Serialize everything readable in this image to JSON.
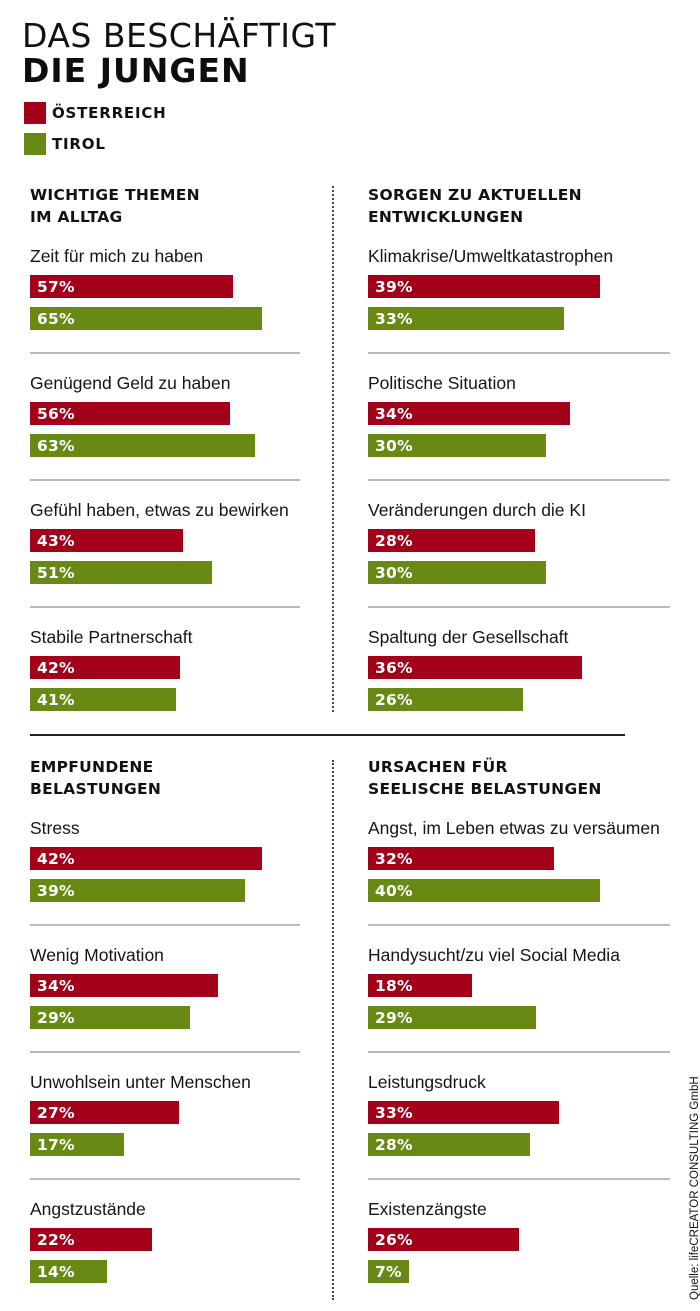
{
  "header": {
    "title_line1": "DAS BESCHÄFTIGT",
    "title_line2": "DIE JUNGEN"
  },
  "legend": [
    {
      "label": "ÖSTERREICH",
      "color": "#A3001A"
    },
    {
      "label": "TIROL",
      "color": "#688A14"
    }
  ],
  "colors": {
    "austria": "#A3001A",
    "tirol": "#688A14",
    "separator": "#B9B9B9"
  },
  "source": "Quelle: lifeCREATOR CONSULTING GmbH",
  "chart_data": [
    {
      "type": "bar",
      "orientation": "horizontal",
      "title": "WICHTIGE THEMEN IM ALLTAG",
      "title_lines": [
        "WICHTIGE THEMEN",
        "IM ALLTAG"
      ],
      "categories": [
        "Zeit für mich zu haben",
        "Genügend Geld zu haben",
        "Gefühl haben, etwas zu bewirken",
        "Stabile Partnerschaft"
      ],
      "series": [
        {
          "name": "ÖSTERREICH",
          "values": [
            57,
            56,
            43,
            42
          ],
          "labels": [
            "57%",
            "56%",
            "43%",
            "42%"
          ]
        },
        {
          "name": "TIROL",
          "values": [
            65,
            63,
            51,
            41
          ],
          "labels": [
            "65%",
            "63%",
            "51%",
            "41%"
          ]
        }
      ],
      "unit": "%"
    },
    {
      "type": "bar",
      "orientation": "horizontal",
      "title": "SORGEN ZU AKTUELLEN ENTWICKLUNGEN",
      "title_lines": [
        "SORGEN ZU AKTUELLEN",
        "ENTWICKLUNGEN"
      ],
      "categories": [
        "Klimakrise/Umweltkatastrophen",
        "Politische Situation",
        "Veränderungen durch die KI",
        "Spaltung der Gesellschaft"
      ],
      "series": [
        {
          "name": "ÖSTERREICH",
          "values": [
            39,
            34,
            28,
            36
          ],
          "labels": [
            "39%",
            "34%",
            "28%",
            "36%"
          ]
        },
        {
          "name": "TIROL",
          "values": [
            33,
            30,
            30,
            26
          ],
          "labels": [
            "33%",
            "30%",
            "30%",
            "26%"
          ]
        }
      ],
      "unit": "%"
    },
    {
      "type": "bar",
      "orientation": "horizontal",
      "title": "EMPFUNDENE BELASTUNGEN",
      "title_lines": [
        "EMPFUNDENE",
        "BELASTUNGEN"
      ],
      "categories": [
        "Stress",
        "Wenig Motivation",
        "Unwohlsein unter Menschen",
        "Angstzustände"
      ],
      "series": [
        {
          "name": "ÖSTERREICH",
          "values": [
            42,
            34,
            27,
            22
          ],
          "labels": [
            "42%",
            "34%",
            "27%",
            "22%"
          ]
        },
        {
          "name": "TIROL",
          "values": [
            39,
            29,
            17,
            14
          ],
          "labels": [
            "39%",
            "29%",
            "17%",
            "14%"
          ]
        }
      ],
      "unit": "%"
    },
    {
      "type": "bar",
      "orientation": "horizontal",
      "title": "URSACHEN FÜR SEELISCHE BELASTUNGEN",
      "title_lines": [
        "URSACHEN FÜR",
        "SEELISCHE BELASTUNGEN"
      ],
      "categories": [
        "Angst, im Leben etwas zu versäumen",
        "Handysucht/zu viel Social Media",
        "Leistungsdruck",
        "Existenzängste"
      ],
      "series": [
        {
          "name": "ÖSTERREICH",
          "values": [
            32,
            18,
            33,
            26
          ],
          "labels": [
            "32%",
            "18%",
            "33%",
            "26%"
          ]
        },
        {
          "name": "TIROL",
          "values": [
            40,
            29,
            28,
            7
          ],
          "labels": [
            "40%",
            "29%",
            "28%",
            "7%"
          ]
        }
      ],
      "unit": "%"
    }
  ]
}
